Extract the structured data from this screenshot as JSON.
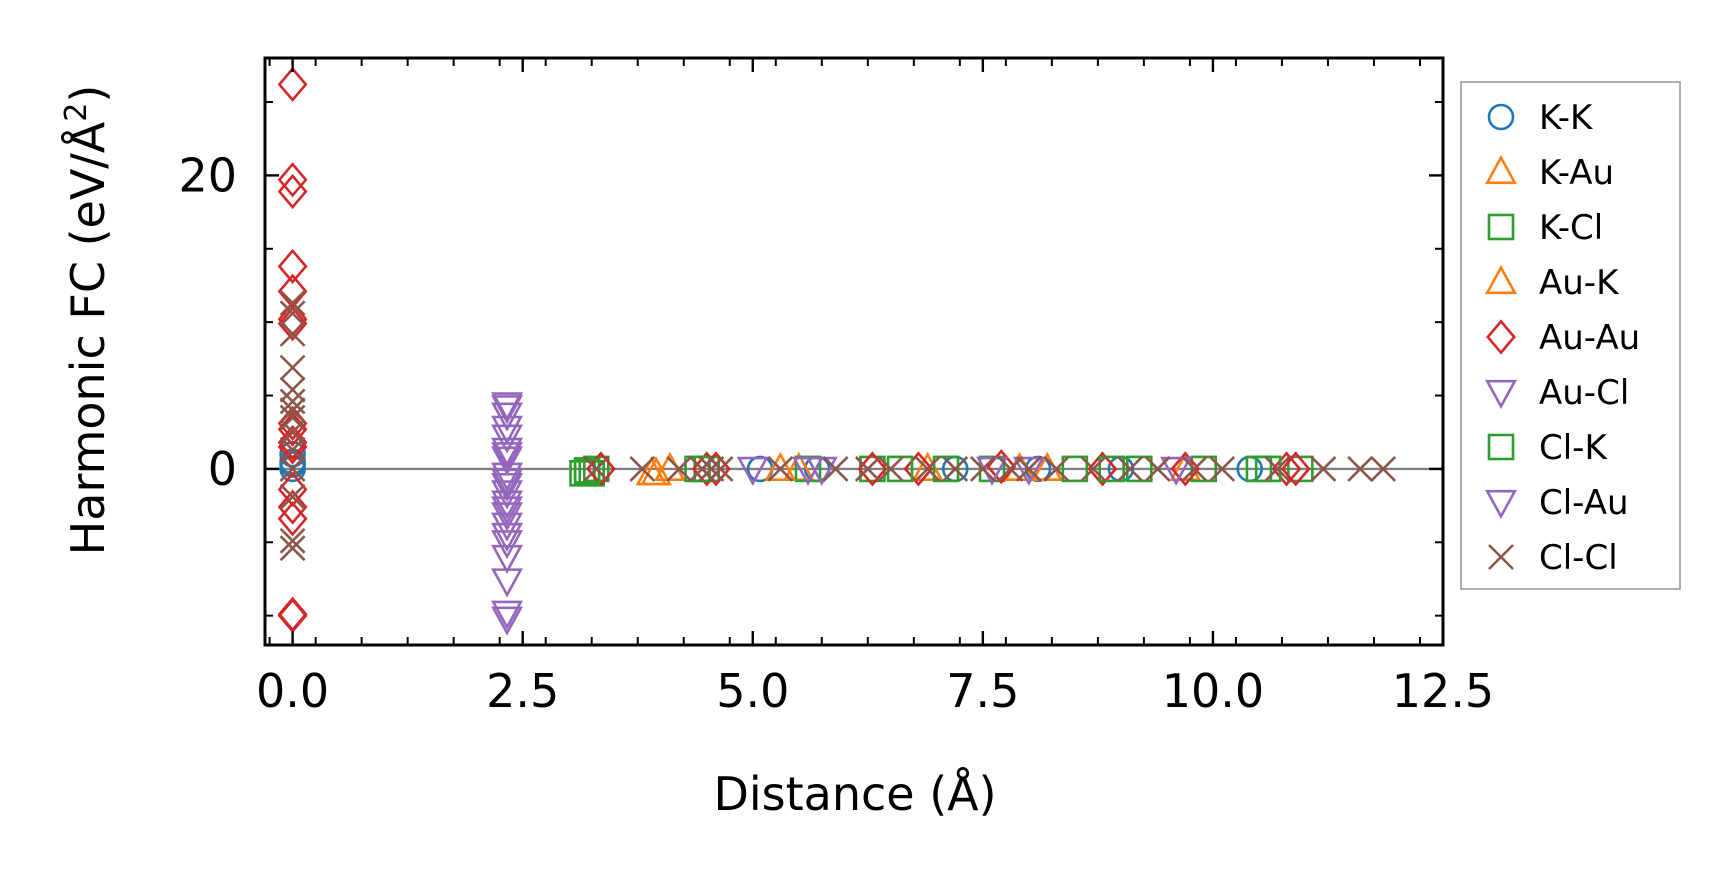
{
  "chart_data": {
    "type": "scatter",
    "xlabel": "Distance (Å)",
    "ylabel_main": "Harmonic FC (eV/Å",
    "ylabel_sup": "2",
    "ylabel_close": ")",
    "xlim": [
      -0.3,
      12.5
    ],
    "ylim": [
      -12,
      28
    ],
    "xticks": [
      0.0,
      2.5,
      5.0,
      7.5,
      10.0,
      12.5
    ],
    "xtick_labels": [
      "0.0",
      "2.5",
      "5.0",
      "7.5",
      "10.0",
      "12.5"
    ],
    "yticks": [
      0,
      20
    ],
    "ytick_labels": [
      "0",
      "20"
    ],
    "reference_line_y": 0,
    "reference_line_color": "#808080",
    "legend_position": "right, outside plot area",
    "series": [
      {
        "name": "K-K",
        "marker": "circle",
        "color": "#1f77b4",
        "points": [
          [
            0,
            0.5
          ],
          [
            0,
            1.0
          ],
          [
            0,
            0.3
          ],
          [
            0,
            0
          ],
          [
            5.08,
            0
          ],
          [
            5.7,
            0
          ],
          [
            7.2,
            0
          ],
          [
            8.1,
            0
          ],
          [
            9.0,
            0
          ],
          [
            10.4,
            0
          ]
        ]
      },
      {
        "name": "K-Au",
        "marker": "triangle-up",
        "color": "#ff7f0e",
        "points": [
          [
            3.9,
            -0.3
          ],
          [
            4.1,
            0
          ],
          [
            5.5,
            0
          ],
          [
            6.9,
            0
          ],
          [
            8.2,
            0
          ],
          [
            9.7,
            0
          ]
        ]
      },
      {
        "name": "K-Cl",
        "marker": "square",
        "color": "#2ca02c",
        "points": [
          [
            3.15,
            -0.3
          ],
          [
            3.2,
            -0.1
          ],
          [
            3.25,
            -0.3
          ],
          [
            3.3,
            0
          ],
          [
            4.5,
            0
          ],
          [
            5.6,
            0
          ],
          [
            6.3,
            0
          ],
          [
            7.1,
            0
          ],
          [
            7.6,
            0
          ],
          [
            8.5,
            0
          ],
          [
            9.2,
            0
          ],
          [
            9.9,
            0
          ],
          [
            10.5,
            0
          ],
          [
            10.95,
            0
          ]
        ]
      },
      {
        "name": "Au-K",
        "marker": "triangle-up",
        "color": "#ff7f0e",
        "points": [
          [
            3.95,
            -0.3
          ],
          [
            5.3,
            0
          ],
          [
            7.9,
            0
          ]
        ]
      },
      {
        "name": "Au-Au",
        "marker": "diamond",
        "color": "#d62728",
        "points": [
          [
            0,
            26.2
          ],
          [
            0,
            19.7
          ],
          [
            0,
            18.9
          ],
          [
            0,
            13.8
          ],
          [
            0,
            12.1
          ],
          [
            0,
            10.2
          ],
          [
            0,
            9.9
          ],
          [
            0,
            3.1
          ],
          [
            0,
            2.7
          ],
          [
            0,
            1.8
          ],
          [
            0,
            1.5
          ],
          [
            0,
            -1.4
          ],
          [
            0,
            -2.6
          ],
          [
            0,
            -3.4
          ],
          [
            0,
            -9.9
          ],
          [
            0,
            -10.0
          ],
          [
            3.35,
            0
          ],
          [
            4.5,
            0
          ],
          [
            4.6,
            0
          ],
          [
            6.3,
            0
          ],
          [
            6.8,
            0
          ],
          [
            7.7,
            0.15
          ],
          [
            8.8,
            0
          ],
          [
            9.7,
            0
          ],
          [
            10.8,
            0
          ],
          [
            10.9,
            0
          ]
        ]
      },
      {
        "name": "Au-Cl",
        "marker": "triangle-down",
        "color": "#9467bd",
        "points": [
          [
            2.33,
            4.4
          ],
          [
            2.33,
            3.7
          ],
          [
            2.33,
            2.2
          ],
          [
            2.33,
            1.3
          ],
          [
            2.33,
            0.7
          ],
          [
            2.33,
            -0.4
          ],
          [
            2.33,
            -1.1
          ],
          [
            2.33,
            -1.6
          ],
          [
            2.33,
            -2.3
          ],
          [
            2.33,
            -3.1
          ],
          [
            2.33,
            -3.8
          ],
          [
            2.33,
            -4.5
          ],
          [
            2.33,
            -6.0
          ],
          [
            2.33,
            -7.6
          ],
          [
            2.33,
            -9.8
          ],
          [
            2.33,
            -10.2
          ],
          [
            5.6,
            0
          ],
          [
            5.75,
            0
          ],
          [
            7.6,
            0
          ],
          [
            9.6,
            0
          ]
        ]
      },
      {
        "name": "Cl-K",
        "marker": "square",
        "color": "#2ca02c",
        "points": [
          [
            3.2,
            -0.2
          ],
          [
            4.4,
            0
          ],
          [
            6.6,
            0
          ],
          [
            8.9,
            0
          ],
          [
            10.6,
            0
          ]
        ]
      },
      {
        "name": "Cl-Au",
        "marker": "triangle-down",
        "color": "#9467bd",
        "points": [
          [
            2.33,
            4.2
          ],
          [
            2.33,
            2.8
          ],
          [
            2.33,
            1.0
          ],
          [
            2.33,
            -0.8
          ],
          [
            2.33,
            -2.7
          ],
          [
            2.33,
            -5.0
          ],
          [
            5.0,
            0
          ],
          [
            8.0,
            0
          ]
        ]
      },
      {
        "name": "Cl-Cl",
        "marker": "x",
        "color": "#8c564b",
        "points": [
          [
            0,
            11.3
          ],
          [
            0,
            10.6
          ],
          [
            0,
            9.2
          ],
          [
            0,
            6.9
          ],
          [
            0,
            5.4
          ],
          [
            0,
            4.6
          ],
          [
            0,
            4.0
          ],
          [
            0,
            3.5
          ],
          [
            0,
            2.5
          ],
          [
            0,
            1.3
          ],
          [
            0,
            0
          ],
          [
            0,
            -1.9
          ],
          [
            0,
            -4.9
          ],
          [
            0,
            -5.4
          ],
          [
            3.3,
            0
          ],
          [
            3.8,
            0
          ],
          [
            4.2,
            0
          ],
          [
            4.45,
            0
          ],
          [
            4.55,
            0
          ],
          [
            4.65,
            0
          ],
          [
            5.3,
            0
          ],
          [
            5.9,
            0
          ],
          [
            6.25,
            0
          ],
          [
            6.5,
            0
          ],
          [
            6.9,
            0
          ],
          [
            7.2,
            0
          ],
          [
            7.5,
            0
          ],
          [
            7.8,
            0
          ],
          [
            8.0,
            0
          ],
          [
            8.3,
            0
          ],
          [
            8.7,
            0
          ],
          [
            9.1,
            0
          ],
          [
            9.4,
            0
          ],
          [
            9.8,
            0
          ],
          [
            10.1,
            0
          ],
          [
            10.7,
            0
          ],
          [
            11.2,
            0
          ],
          [
            11.6,
            0
          ],
          [
            11.85,
            0
          ]
        ]
      }
    ]
  }
}
